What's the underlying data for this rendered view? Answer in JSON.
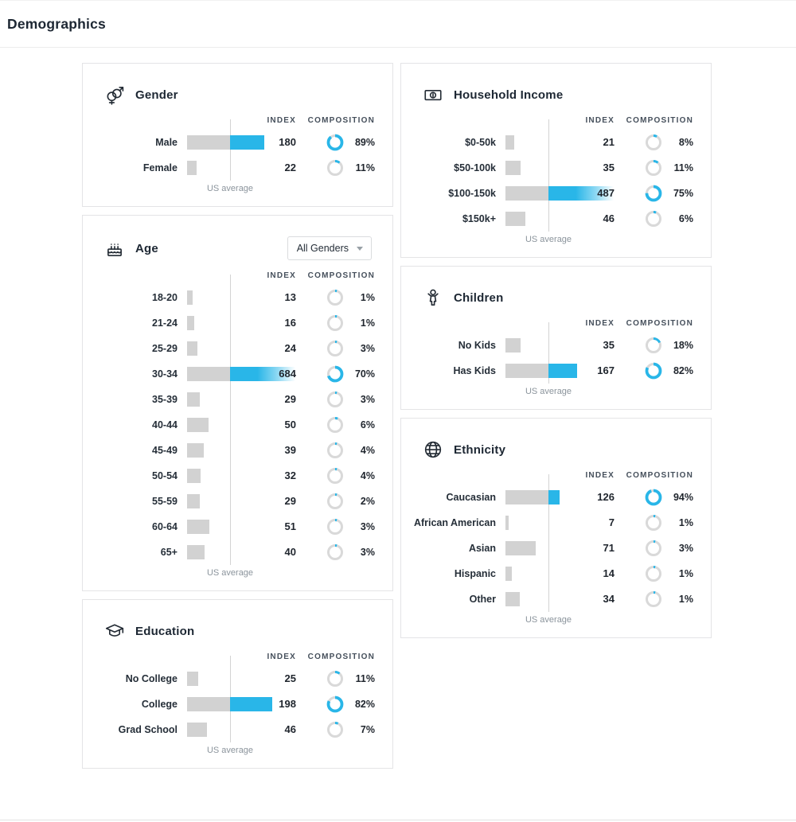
{
  "page": {
    "title": "Demographics"
  },
  "labels": {
    "index": "INDEX",
    "composition": "COMPOSITION",
    "us_average": "US average"
  },
  "colors": {
    "accent_blue": "#29b6e8",
    "bar_gray": "#d2d2d2",
    "donut_gray": "#d9d9d9",
    "text_dark": "#20262e"
  },
  "cards": [
    {
      "id": "gender",
      "title": "Gender",
      "icon": "gender-icon",
      "column": "left",
      "rows": [
        {
          "label": "Male",
          "index": 180,
          "composition": "89%"
        },
        {
          "label": "Female",
          "index": 22,
          "composition": "11%"
        }
      ]
    },
    {
      "id": "age",
      "title": "Age",
      "icon": "birthday-cake-icon",
      "column": "left",
      "dropdown": "All Genders",
      "rows": [
        {
          "label": "18-20",
          "index": 13,
          "composition": "1%"
        },
        {
          "label": "21-24",
          "index": 16,
          "composition": "1%"
        },
        {
          "label": "25-29",
          "index": 24,
          "composition": "3%"
        },
        {
          "label": "30-34",
          "index": 684,
          "composition": "70%"
        },
        {
          "label": "35-39",
          "index": 29,
          "composition": "3%"
        },
        {
          "label": "40-44",
          "index": 50,
          "composition": "6%"
        },
        {
          "label": "45-49",
          "index": 39,
          "composition": "4%"
        },
        {
          "label": "50-54",
          "index": 32,
          "composition": "4%"
        },
        {
          "label": "55-59",
          "index": 29,
          "composition": "2%"
        },
        {
          "label": "60-64",
          "index": 51,
          "composition": "3%"
        },
        {
          "label": "65+",
          "index": 40,
          "composition": "3%"
        }
      ]
    },
    {
      "id": "education",
      "title": "Education",
      "icon": "grad-cap-icon",
      "column": "left",
      "rows": [
        {
          "label": "No College",
          "index": 25,
          "composition": "11%"
        },
        {
          "label": "College",
          "index": 198,
          "composition": "82%"
        },
        {
          "label": "Grad School",
          "index": 46,
          "composition": "7%"
        }
      ]
    },
    {
      "id": "household-income",
      "title": "Household Income",
      "icon": "banknote-icon",
      "column": "right",
      "rows": [
        {
          "label": "$0-50k",
          "index": 21,
          "composition": "8%"
        },
        {
          "label": "$50-100k",
          "index": 35,
          "composition": "11%"
        },
        {
          "label": "$100-150k",
          "index": 487,
          "composition": "75%"
        },
        {
          "label": "$150k+",
          "index": 46,
          "composition": "6%"
        }
      ]
    },
    {
      "id": "children",
      "title": "Children",
      "icon": "child-icon",
      "column": "right",
      "rows": [
        {
          "label": "No Kids",
          "index": 35,
          "composition": "18%"
        },
        {
          "label": "Has Kids",
          "index": 167,
          "composition": "82%"
        }
      ]
    },
    {
      "id": "ethnicity",
      "title": "Ethnicity",
      "icon": "globe-icon",
      "column": "right",
      "rows": [
        {
          "label": "Caucasian",
          "index": 126,
          "composition": "94%"
        },
        {
          "label": "African American",
          "index": 7,
          "composition": "1%"
        },
        {
          "label": "Asian",
          "index": 71,
          "composition": "3%"
        },
        {
          "label": "Hispanic",
          "index": 14,
          "composition": "1%"
        },
        {
          "label": "Other",
          "index": 34,
          "composition": "1%"
        }
      ]
    }
  ]
}
